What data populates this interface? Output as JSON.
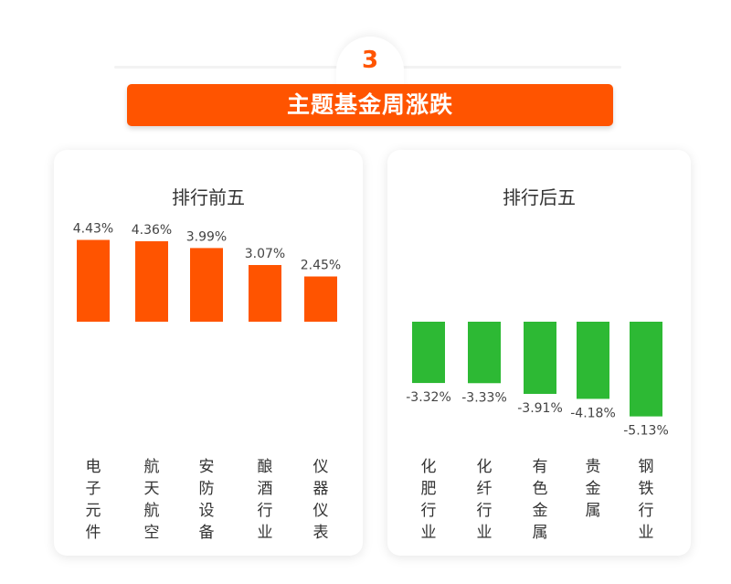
{
  "header": {
    "number": "3",
    "title": "主题基金周涨跌"
  },
  "colors": {
    "accent": "#ff5400",
    "up": "#ff5400",
    "down": "#2db934"
  },
  "chart_data": [
    {
      "type": "bar",
      "title": "排行前五",
      "categories": [
        "电子元件",
        "航天航空",
        "安防设备",
        "酿酒行业",
        "仪器仪表"
      ],
      "values": [
        4.43,
        4.36,
        3.99,
        3.07,
        2.45
      ],
      "labels": [
        "4.43%",
        "4.36%",
        "3.99%",
        "3.07%",
        "2.45%"
      ],
      "unit": "%"
    },
    {
      "type": "bar",
      "title": "排行后五",
      "categories": [
        "化肥行业",
        "化纤行业",
        "有色金属",
        "贵金属",
        "钢铁行业"
      ],
      "values": [
        -3.32,
        -3.33,
        -3.91,
        -4.18,
        -5.13
      ],
      "labels": [
        "-3.32%",
        "-3.33%",
        "-3.91%",
        "-4.18%",
        "-5.13%"
      ],
      "unit": "%"
    }
  ]
}
